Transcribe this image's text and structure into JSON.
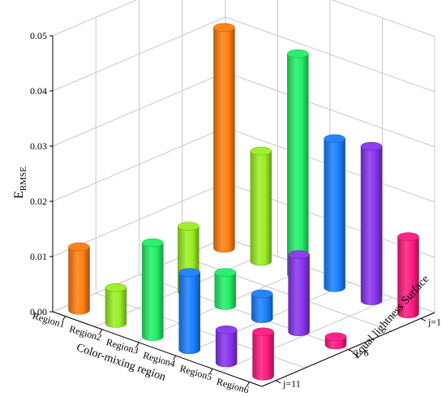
{
  "chart_data": {
    "type": "bar",
    "subtype": "3d-cylinder-bar",
    "ylabel_main": "E",
    "ylabel_sub": "RMSE",
    "xlabel": "Color-mixing region",
    "zlabel": "Equal lightness Surface",
    "zlim": [
      0,
      0.05
    ],
    "z_ticks": [
      "0.00",
      "0.01",
      "0.02",
      "0.03",
      "0.04",
      "0.05"
    ],
    "x_categories": [
      "Region1",
      "Region2",
      "Region3",
      "Region4",
      "Region5",
      "Region6"
    ],
    "y_categories": [
      "j=1",
      "j=6",
      "j=11"
    ],
    "grid": true,
    "bars": [
      {
        "x": "Region1",
        "y": "j=11",
        "value": 0.0115,
        "color": "#ff7f0e"
      },
      {
        "x": "Region1",
        "y": "j=1",
        "value": 0.04,
        "color": "#ff7f0e"
      },
      {
        "x": "Region2",
        "y": "j=11",
        "value": 0.0065,
        "color": "#99ee22"
      },
      {
        "x": "Region2",
        "y": "j=6",
        "value": 0.012,
        "color": "#99ee22"
      },
      {
        "x": "Region2",
        "y": "j=1",
        "value": 0.02,
        "color": "#99ee22"
      },
      {
        "x": "Region3",
        "y": "j=11",
        "value": 0.017,
        "color": "#22ee66"
      },
      {
        "x": "Region3",
        "y": "j=6",
        "value": 0.006,
        "color": "#22ee66"
      },
      {
        "x": "Region3",
        "y": "j=1",
        "value": 0.04,
        "color": "#22ee66"
      },
      {
        "x": "Region4",
        "y": "j=11",
        "value": 0.014,
        "color": "#1a7fff"
      },
      {
        "x": "Region4",
        "y": "j=6",
        "value": 0.0045,
        "color": "#1a7fff"
      },
      {
        "x": "Region4",
        "y": "j=1",
        "value": 0.027,
        "color": "#1a7fff"
      },
      {
        "x": "Region5",
        "y": "j=11",
        "value": 0.006,
        "color": "#8833ee"
      },
      {
        "x": "Region5",
        "y": "j=6",
        "value": 0.014,
        "color": "#8833ee"
      },
      {
        "x": "Region5",
        "y": "j=1",
        "value": 0.028,
        "color": "#8833ee"
      },
      {
        "x": "Region6",
        "y": "j=11",
        "value": 0.008,
        "color": "#ff1a80"
      },
      {
        "x": "Region6",
        "y": "j=6",
        "value": 0.0015,
        "color": "#ff1a80"
      },
      {
        "x": "Region6",
        "y": "j=1",
        "value": 0.014,
        "color": "#ff1a80"
      }
    ]
  }
}
